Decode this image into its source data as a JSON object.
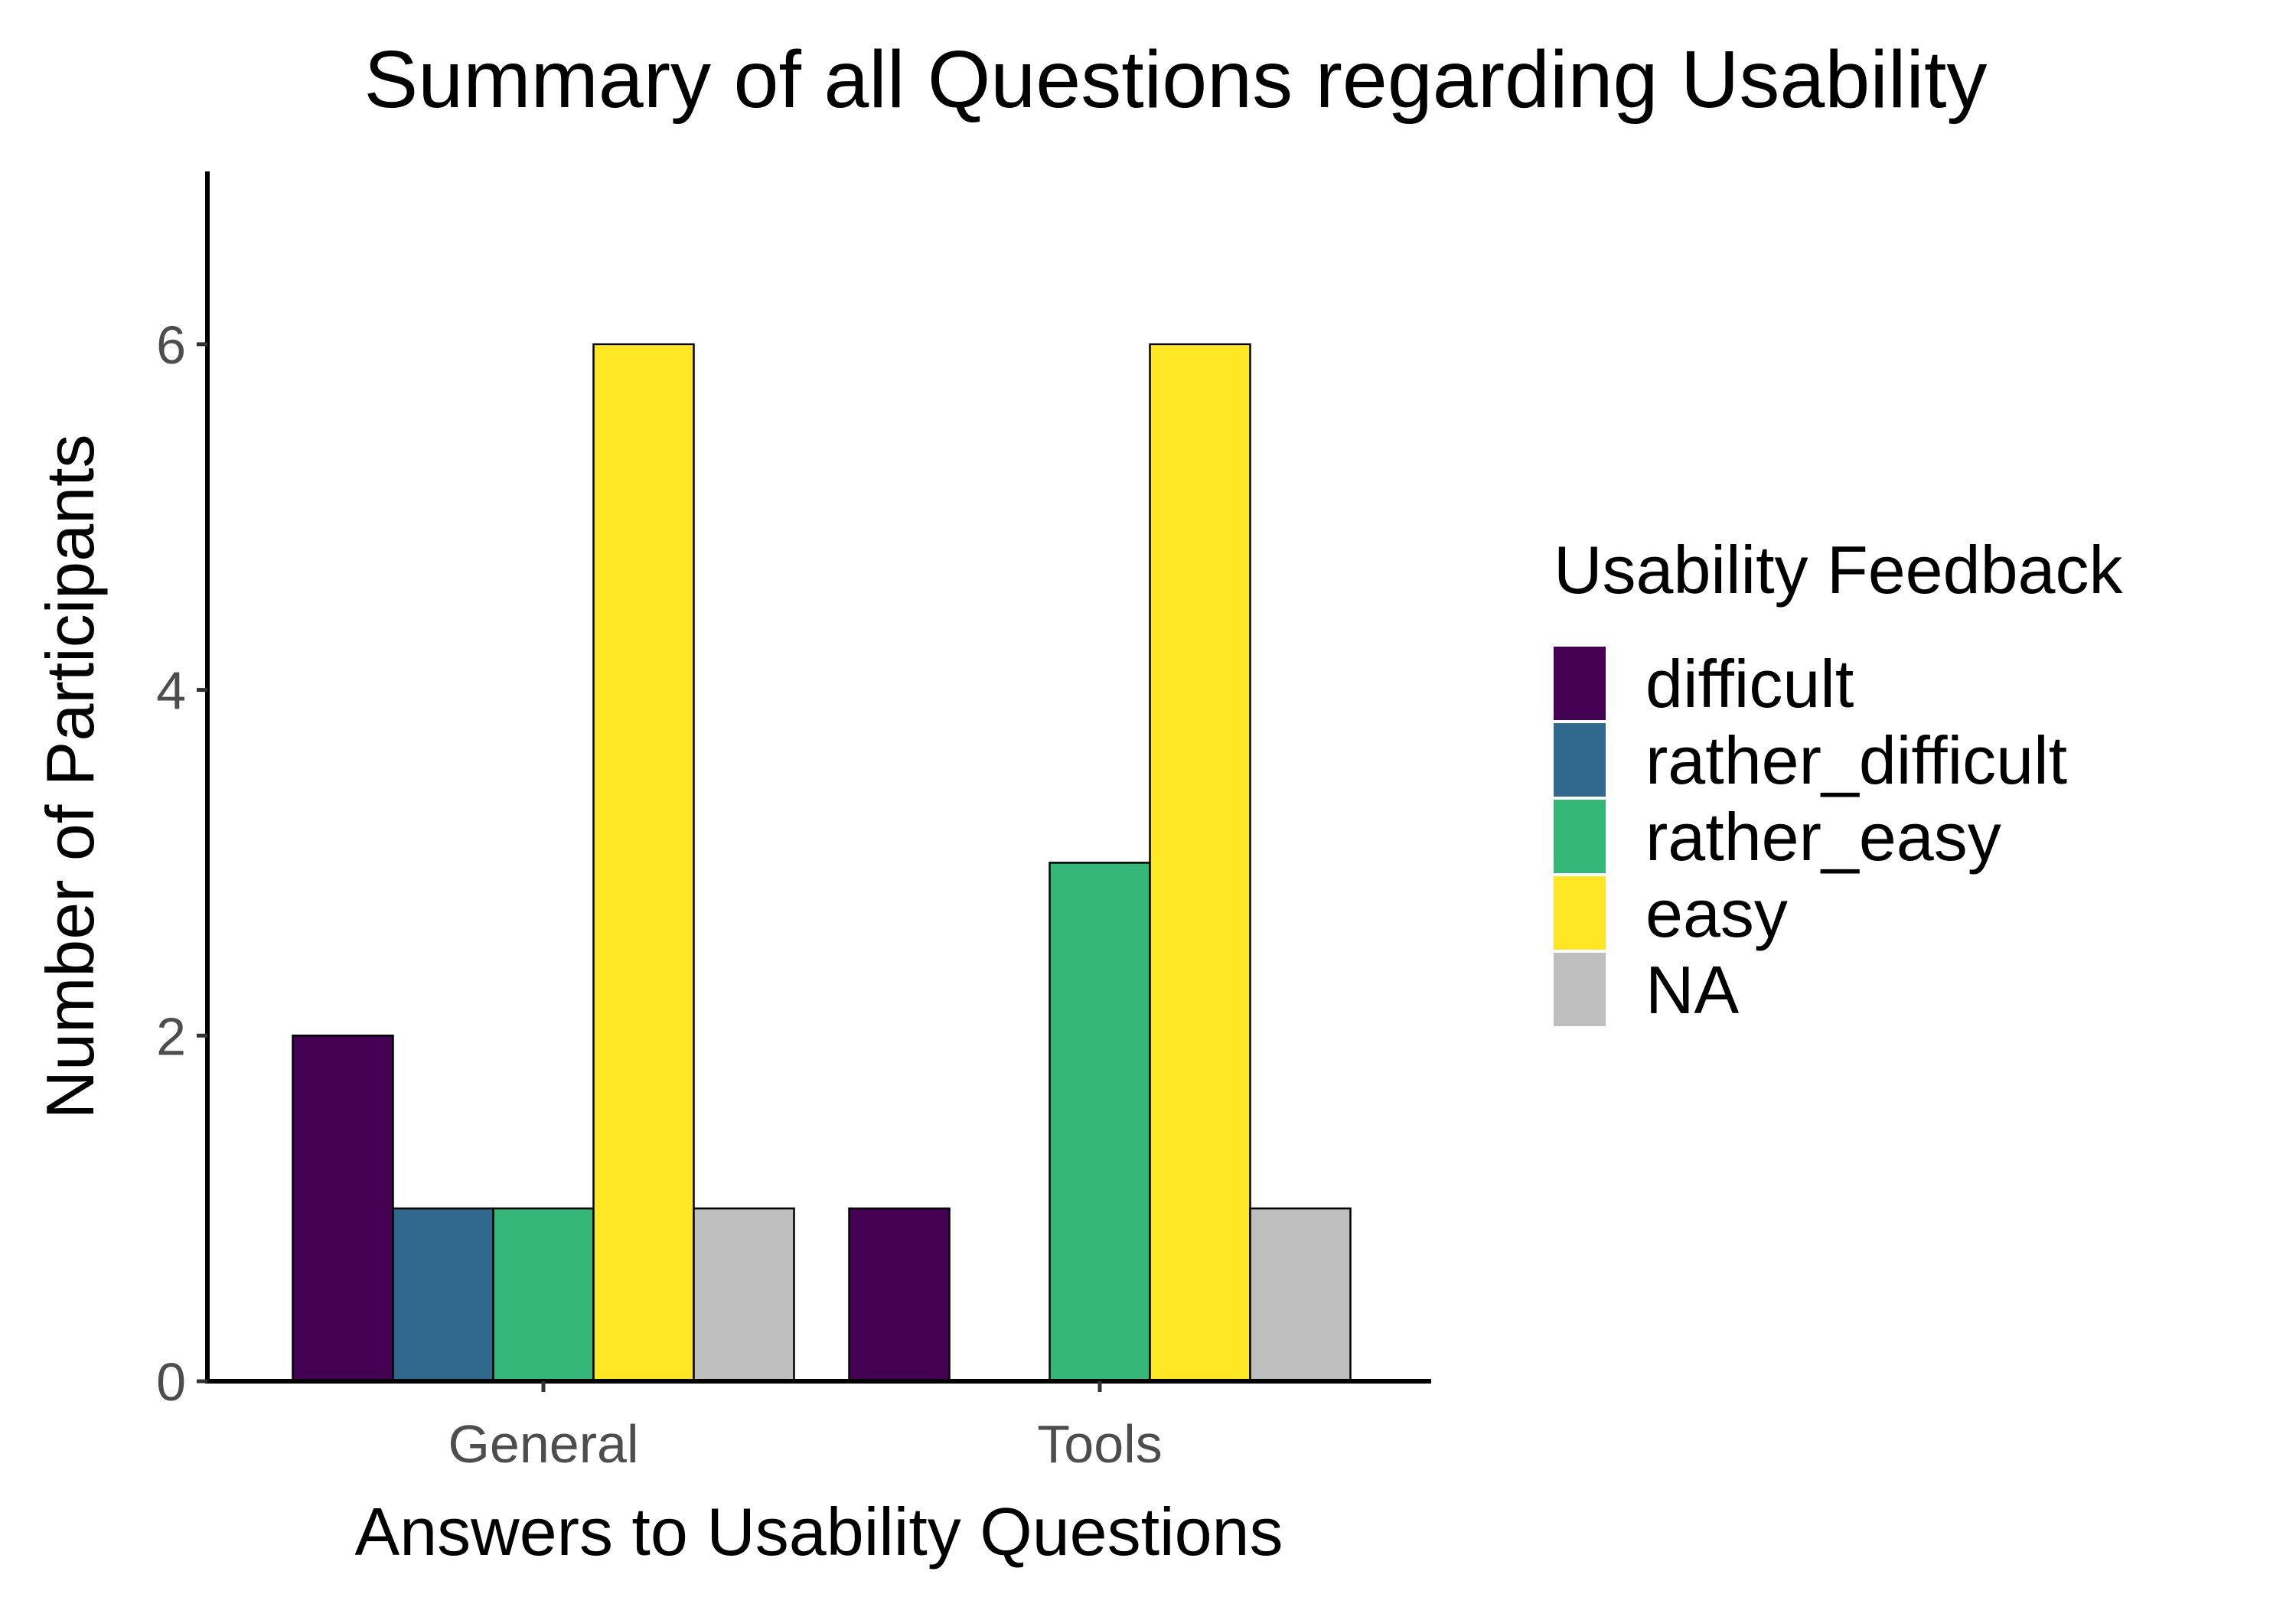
{
  "chart_data": {
    "type": "bar",
    "title": "Summary of all Questions regarding Usability",
    "xlabel": "Answers to Usability Questions",
    "ylabel": "Number of Participants",
    "categories": [
      "General",
      "Tools"
    ],
    "ylim": [
      0,
      7
    ],
    "yticks": [
      0,
      2,
      4,
      6
    ],
    "grid": false,
    "legend": {
      "title": "Usability Feedback",
      "position": "right"
    },
    "series": [
      {
        "name": "difficult",
        "color": "#440154",
        "values": [
          2,
          1
        ]
      },
      {
        "name": "rather_difficult",
        "color": "#31688E",
        "values": [
          1,
          0
        ]
      },
      {
        "name": "rather_easy",
        "color": "#35B779",
        "values": [
          1,
          3
        ]
      },
      {
        "name": "easy",
        "color": "#FDE725",
        "values": [
          6,
          6
        ]
      },
      {
        "name": "NA",
        "color": "#BEBEBE",
        "values": [
          1,
          1
        ]
      }
    ]
  }
}
